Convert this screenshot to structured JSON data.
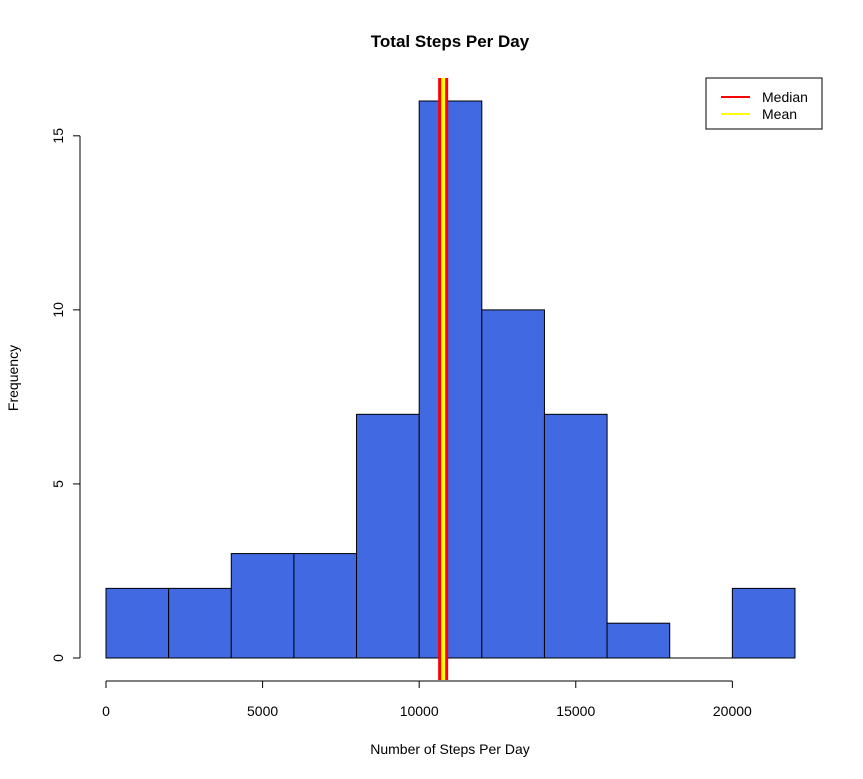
{
  "chart_data": {
    "type": "histogram",
    "title": "Total Steps Per Day",
    "xlabel": "Number of Steps Per Day",
    "ylabel": "Frequency",
    "bins": [
      {
        "start": 0,
        "end": 2000,
        "count": 2
      },
      {
        "start": 2000,
        "end": 4000,
        "count": 2
      },
      {
        "start": 4000,
        "end": 6000,
        "count": 3
      },
      {
        "start": 6000,
        "end": 8000,
        "count": 3
      },
      {
        "start": 8000,
        "end": 10000,
        "count": 7
      },
      {
        "start": 10000,
        "end": 12000,
        "count": 16
      },
      {
        "start": 12000,
        "end": 14000,
        "count": 10
      },
      {
        "start": 14000,
        "end": 16000,
        "count": 7
      },
      {
        "start": 16000,
        "end": 18000,
        "count": 1
      },
      {
        "start": 18000,
        "end": 20000,
        "count": 0
      },
      {
        "start": 20000,
        "end": 22000,
        "count": 2
      }
    ],
    "xlim": [
      0,
      22000
    ],
    "ylim": [
      0,
      16
    ],
    "x_ticks": [
      0,
      5000,
      10000,
      15000,
      20000
    ],
    "x_tick_labels": [
      "0",
      "5000",
      "10000",
      "15000",
      "20000"
    ],
    "y_ticks": [
      0,
      5,
      10,
      15
    ],
    "y_tick_labels": [
      "0",
      "5",
      "10",
      "15"
    ],
    "bar_color": "#4169E1",
    "reference_lines": [
      {
        "name": "Median",
        "value": 10765,
        "color": "#FF0000"
      },
      {
        "name": "Mean",
        "value": 10766.19,
        "color": "#FFFF00"
      }
    ],
    "legend": {
      "position": "top-right",
      "entries": [
        {
          "label": "Median",
          "color": "#FF0000"
        },
        {
          "label": "Mean",
          "color": "#FFFF00"
        }
      ]
    }
  }
}
